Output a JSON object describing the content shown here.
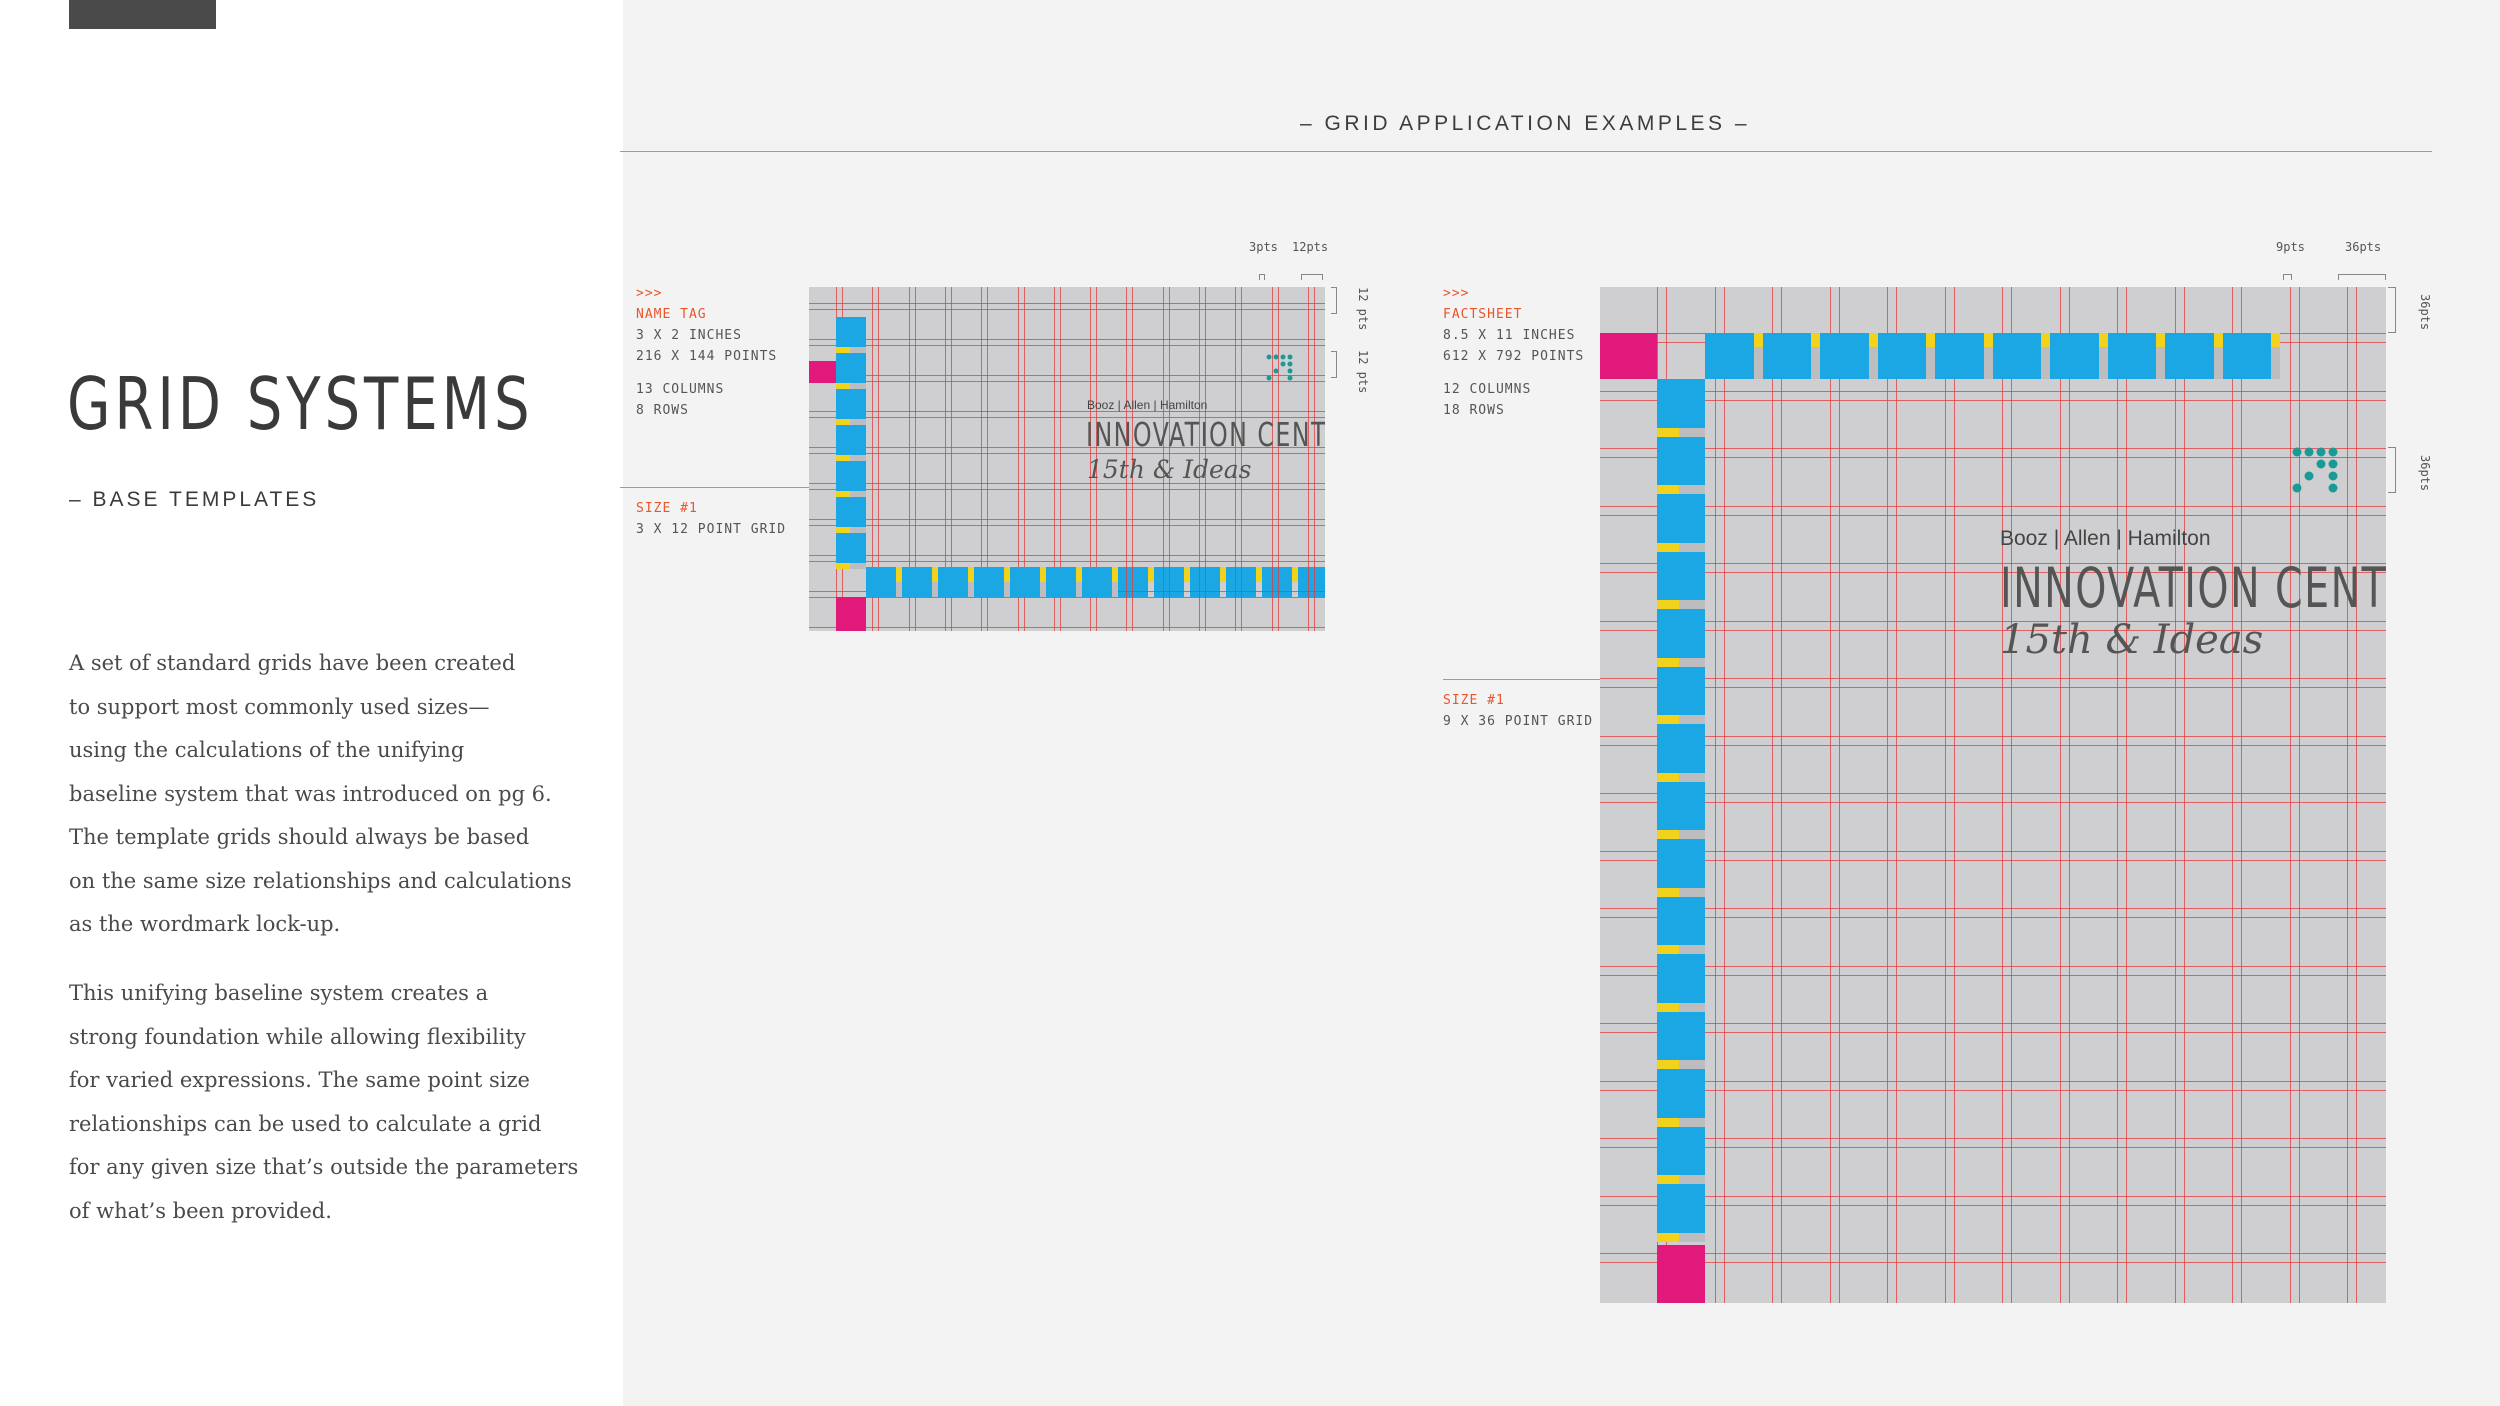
{
  "left": {
    "title": "GRID SYSTEMS",
    "subtitle": "– BASE TEMPLATES",
    "para1": "A set of standard grids have been created\nto support most commonly used sizes—\nusing the calculations of the unifying\nbaseline system that was introduced on pg 6.\nThe template grids should always be based\non the same size relationships and calculations\nas the wordmark lock-up.",
    "para2": "This unifying baseline system creates a\nstrong foundation while allowing flexibility\nfor varied expressions. The same point size\nrelationships can be used to calculate a grid\nfor any given size that’s outside the parameters\nof what’s been provided."
  },
  "section_title": "– GRID APPLICATION EXAMPLES –",
  "name_tag": {
    "arrows": ">>>",
    "name": "NAME TAG",
    "inches": "3 X 2 INCHES",
    "points": "216 X 144 POINTS",
    "columns": "13 COLUMNS",
    "rows": "8 ROWS",
    "size_label": "SIZE #1",
    "grid_label": "3 X 12 POINT GRID",
    "dim_small": "3pts",
    "dim_large": "12pts",
    "dim_side_1": "12 pts",
    "dim_side_2": "12 pts",
    "logo_top": "Booz | Allen | Hamilton",
    "logo_main": "INNOVATION CENTER",
    "logo_sub": "15th & Ideas"
  },
  "factsheet": {
    "arrows": ">>>",
    "name": "FACTSHEET",
    "inches": "8.5 X 11 INCHES",
    "points": "612 X 792 POINTS",
    "columns": "12 COLUMNS",
    "rows": "18 ROWS",
    "size_label": "SIZE #1",
    "grid_label": "9 X 36 POINT GRID",
    "dim_small": "9pts",
    "dim_large": "36pts",
    "dim_side_1": "36pts",
    "dim_side_2": "36pts",
    "logo_top": "Booz | Allen | Hamilton",
    "logo_main": "INNOVATION CENTER",
    "logo_sub": "15th & Ideas"
  },
  "colors": {
    "accent": "#e8562c",
    "grid_line": "#e53a3a",
    "module_blue": "#1aa7e3",
    "gutter_yellow": "#f2d21c",
    "margin_magenta": "#e0197a",
    "icon_teal": "#1a9a96"
  }
}
